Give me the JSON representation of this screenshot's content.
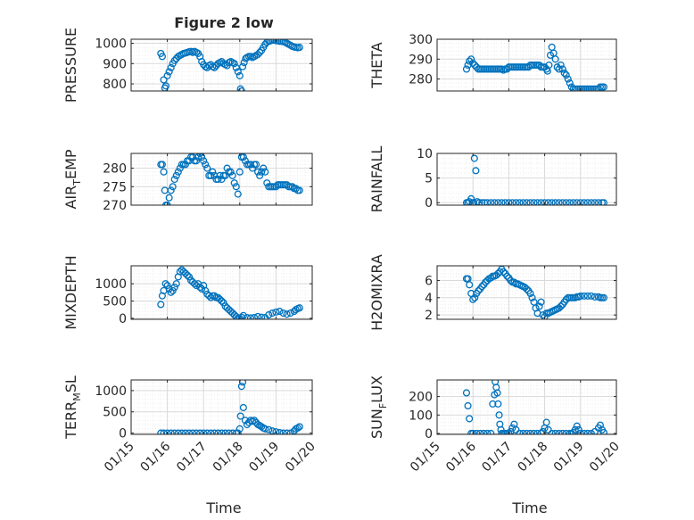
{
  "figure": {
    "title": "Figure 2 low",
    "xlabel": "Time",
    "xtick_labels": [
      "01/15",
      "01/16",
      "01/17",
      "01/18",
      "01/19",
      "01/20"
    ]
  },
  "colors": {
    "marker": "#0072BD",
    "axis": "#262626",
    "grid": "#d9d9d9",
    "minorgrid": "#ececec"
  },
  "chart_data": [
    {
      "type": "scatter",
      "ylabel": "PRESSURE",
      "xlim": [
        0,
        5
      ],
      "ylim": [
        765,
        1020
      ],
      "yticks": [
        800,
        900,
        1000
      ],
      "ytick_labels": [
        "800",
        "900",
        "1000"
      ],
      "x": [
        0.82,
        0.86,
        0.9,
        0.93,
        0.96,
        1.0,
        1.05,
        1.1,
        1.15,
        1.2,
        1.25,
        1.3,
        1.35,
        1.4,
        1.45,
        1.5,
        1.55,
        1.6,
        1.65,
        1.7,
        1.75,
        1.8,
        1.85,
        1.9,
        1.95,
        2.0,
        2.05,
        2.1,
        2.15,
        2.2,
        2.25,
        2.3,
        2.35,
        2.4,
        2.45,
        2.5,
        2.55,
        2.6,
        2.65,
        2.7,
        2.75,
        2.8,
        2.85,
        2.9,
        2.95,
        3.0,
        3.02,
        3.05,
        3.08,
        3.12,
        3.16,
        3.2,
        3.25,
        3.3,
        3.35,
        3.4,
        3.45,
        3.5,
        3.55,
        3.6,
        3.65,
        3.7,
        3.75,
        3.8,
        3.85,
        3.9,
        3.95,
        4.0,
        4.05,
        4.1,
        4.15,
        4.2,
        4.25,
        4.3,
        4.35,
        4.4,
        4.45,
        4.5,
        4.55,
        4.6,
        4.65
      ],
      "y": [
        950,
        935,
        820,
        780,
        790,
        840,
        860,
        880,
        900,
        915,
        925,
        935,
        940,
        945,
        950,
        952,
        955,
        958,
        960,
        955,
        960,
        955,
        950,
        935,
        910,
        895,
        885,
        880,
        890,
        895,
        885,
        880,
        890,
        900,
        905,
        910,
        900,
        895,
        890,
        905,
        910,
        905,
        900,
        880,
        860,
        840,
        775,
        765,
        885,
        905,
        925,
        930,
        935,
        935,
        930,
        935,
        940,
        945,
        955,
        965,
        980,
        995,
        1005,
        1010,
        1012,
        1015,
        1015,
        1013,
        1012,
        1010,
        1010,
        1008,
        1005,
        1000,
        995,
        990,
        985,
        982,
        980,
        978,
        980
      ]
    },
    {
      "type": "scatter",
      "ylabel": "THETA",
      "xlim": [
        0,
        5
      ],
      "ylim": [
        274,
        300
      ],
      "yticks": [
        280,
        290,
        300
      ],
      "ytick_labels": [
        "280",
        "290",
        "300"
      ],
      "x": [
        0.82,
        0.86,
        0.9,
        0.95,
        1.0,
        1.05,
        1.1,
        1.15,
        1.2,
        1.25,
        1.3,
        1.35,
        1.4,
        1.45,
        1.5,
        1.55,
        1.6,
        1.65,
        1.7,
        1.75,
        1.8,
        1.85,
        1.9,
        1.95,
        2.0,
        2.05,
        2.1,
        2.15,
        2.2,
        2.25,
        2.3,
        2.35,
        2.4,
        2.45,
        2.5,
        2.55,
        2.6,
        2.65,
        2.7,
        2.75,
        2.8,
        2.85,
        2.9,
        2.95,
        3.0,
        3.05,
        3.08,
        3.12,
        3.16,
        3.2,
        3.25,
        3.3,
        3.35,
        3.4,
        3.45,
        3.5,
        3.55,
        3.6,
        3.65,
        3.7,
        3.75,
        3.8,
        3.85,
        3.9,
        3.95,
        4.0,
        4.05,
        4.1,
        4.15,
        4.2,
        4.25,
        4.3,
        4.35,
        4.4,
        4.45,
        4.5,
        4.55,
        4.6,
        4.65
      ],
      "y": [
        285,
        287,
        289,
        290,
        288,
        287,
        286,
        285,
        285,
        285,
        285,
        285,
        285,
        285,
        285,
        285,
        285,
        285,
        285,
        285,
        285,
        284.5,
        285,
        285,
        286,
        286,
        286,
        286,
        286,
        286,
        286,
        286,
        286,
        286,
        286,
        286,
        287,
        287,
        287,
        287,
        287,
        287,
        286,
        286,
        286,
        285,
        284,
        287,
        292,
        296,
        293,
        290,
        286,
        285,
        287,
        285,
        283,
        282,
        280,
        278,
        276,
        275,
        275,
        275,
        275,
        275,
        275,
        275,
        275,
        275,
        275,
        275,
        275,
        275,
        275,
        275,
        276,
        276,
        276
      ]
    },
    {
      "type": "scatter",
      "ylabel": "AIR_TEMP",
      "xlim": [
        0,
        5
      ],
      "ylim": [
        270,
        284
      ],
      "yticks": [
        270,
        275,
        280
      ],
      "ytick_labels": [
        "270",
        "275",
        "280"
      ],
      "x": [
        0.82,
        0.86,
        0.9,
        0.93,
        0.96,
        1.0,
        1.05,
        1.1,
        1.15,
        1.2,
        1.25,
        1.3,
        1.35,
        1.4,
        1.45,
        1.5,
        1.55,
        1.6,
        1.65,
        1.7,
        1.75,
        1.8,
        1.85,
        1.9,
        1.95,
        2.0,
        2.05,
        2.1,
        2.15,
        2.2,
        2.25,
        2.3,
        2.35,
        2.4,
        2.45,
        2.5,
        2.55,
        2.6,
        2.65,
        2.7,
        2.75,
        2.8,
        2.85,
        2.9,
        2.95,
        3.0,
        3.05,
        3.1,
        3.15,
        3.2,
        3.25,
        3.3,
        3.35,
        3.4,
        3.45,
        3.5,
        3.55,
        3.6,
        3.65,
        3.7,
        3.75,
        3.8,
        3.85,
        3.9,
        3.95,
        4.0,
        4.05,
        4.1,
        4.15,
        4.2,
        4.25,
        4.3,
        4.35,
        4.4,
        4.45,
        4.5,
        4.55,
        4.6,
        4.65
      ],
      "y": [
        281,
        281,
        279,
        274,
        270,
        270,
        272,
        274,
        275,
        277,
        278,
        279,
        280,
        281,
        281,
        281,
        282,
        282,
        283,
        283,
        282,
        282,
        283,
        284,
        283,
        282,
        281,
        280,
        278,
        278,
        279,
        278,
        277,
        277,
        278,
        277,
        278,
        278,
        280,
        279,
        279,
        278,
        276,
        275,
        273,
        279,
        283,
        283,
        282,
        281,
        281,
        281,
        280,
        281,
        281,
        279,
        278,
        279,
        280,
        279,
        276,
        275,
        275,
        275,
        275,
        275,
        275.5,
        275.5,
        275.5,
        275.5,
        275.5,
        275.5,
        275,
        275,
        275,
        274.5,
        274.5,
        274,
        274
      ]
    },
    {
      "type": "scatter",
      "ylabel": "RAINFALL",
      "xlim": [
        0,
        5
      ],
      "ylim": [
        -0.5,
        10
      ],
      "yticks": [
        0,
        5,
        10
      ],
      "ytick_labels": [
        "0",
        "5",
        "10"
      ],
      "x": [
        0.82,
        0.86,
        0.9,
        0.95,
        1.0,
        1.02,
        1.04,
        1.08,
        1.12,
        1.18,
        1.25,
        1.32,
        1.4,
        1.5,
        1.6,
        1.7,
        1.8,
        1.9,
        2.0,
        2.1,
        2.2,
        2.3,
        2.4,
        2.5,
        2.6,
        2.7,
        2.8,
        2.9,
        3.0,
        3.1,
        3.2,
        3.3,
        3.4,
        3.5,
        3.6,
        3.7,
        3.8,
        3.9,
        4.0,
        4.1,
        4.2,
        4.3,
        4.4,
        4.5,
        4.6,
        4.65
      ],
      "y": [
        0,
        0,
        0.2,
        0.8,
        0,
        0,
        9,
        6.5,
        0.2,
        0,
        0,
        0,
        0,
        0,
        0,
        0,
        0,
        0,
        0,
        0,
        0,
        0,
        0,
        0,
        0,
        0,
        0,
        0,
        0,
        0,
        0,
        0,
        0,
        0,
        0,
        0,
        0,
        0,
        0,
        0,
        0,
        0,
        0,
        0,
        0,
        0
      ]
    },
    {
      "type": "scatter",
      "ylabel": "MIXDEPTH",
      "xlim": [
        0,
        5
      ],
      "ylim": [
        -30,
        1520
      ],
      "yticks": [
        0,
        500,
        1000
      ],
      "ytick_labels": [
        "0",
        "500",
        "1000"
      ],
      "x": [
        0.82,
        0.86,
        0.9,
        0.95,
        1.0,
        1.05,
        1.1,
        1.15,
        1.2,
        1.25,
        1.3,
        1.35,
        1.4,
        1.45,
        1.5,
        1.55,
        1.6,
        1.65,
        1.7,
        1.75,
        1.8,
        1.85,
        1.9,
        1.95,
        2.0,
        2.05,
        2.1,
        2.15,
        2.2,
        2.25,
        2.3,
        2.35,
        2.4,
        2.45,
        2.5,
        2.55,
        2.6,
        2.65,
        2.7,
        2.75,
        2.8,
        2.85,
        2.9,
        2.95,
        3.0,
        3.05,
        3.1,
        3.2,
        3.3,
        3.4,
        3.5,
        3.6,
        3.7,
        3.8,
        3.9,
        4.0,
        4.1,
        4.2,
        4.3,
        4.4,
        4.5,
        4.55,
        4.6,
        4.65
      ],
      "y": [
        400,
        650,
        800,
        1000,
        950,
        850,
        750,
        800,
        900,
        1000,
        1200,
        1350,
        1400,
        1350,
        1300,
        1250,
        1200,
        1100,
        1050,
        1000,
        950,
        1000,
        900,
        850,
        950,
        800,
        700,
        650,
        600,
        650,
        650,
        600,
        600,
        550,
        500,
        450,
        350,
        300,
        250,
        200,
        150,
        100,
        50,
        0,
        0,
        30,
        80,
        20,
        10,
        20,
        50,
        30,
        20,
        100,
        150,
        180,
        200,
        150,
        120,
        150,
        200,
        250,
        280,
        300
      ]
    },
    {
      "type": "scatter",
      "ylabel": "H2OMIXRA",
      "xlim": [
        0,
        5
      ],
      "ylim": [
        1.5,
        7.7
      ],
      "yticks": [
        2,
        4,
        6
      ],
      "ytick_labels": [
        "2",
        "4",
        "6"
      ],
      "x": [
        0.82,
        0.86,
        0.9,
        0.95,
        1.0,
        1.05,
        1.1,
        1.15,
        1.2,
        1.25,
        1.3,
        1.35,
        1.4,
        1.45,
        1.5,
        1.55,
        1.6,
        1.65,
        1.7,
        1.75,
        1.8,
        1.85,
        1.9,
        1.95,
        2.0,
        2.05,
        2.1,
        2.15,
        2.2,
        2.25,
        2.3,
        2.35,
        2.4,
        2.45,
        2.5,
        2.55,
        2.6,
        2.65,
        2.7,
        2.75,
        2.8,
        2.85,
        2.9,
        2.95,
        3.0,
        3.05,
        3.1,
        3.15,
        3.2,
        3.25,
        3.3,
        3.35,
        3.4,
        3.45,
        3.5,
        3.55,
        3.6,
        3.65,
        3.7,
        3.75,
        3.8,
        3.85,
        3.9,
        3.95,
        4.0,
        4.1,
        4.2,
        4.3,
        4.4,
        4.5,
        4.55,
        4.6,
        4.65
      ],
      "y": [
        6.2,
        6.2,
        5.5,
        4.5,
        3.8,
        4.0,
        4.5,
        4.8,
        5.0,
        5.3,
        5.5,
        5.8,
        6.0,
        6.2,
        6.3,
        6.5,
        6.5,
        6.6,
        6.8,
        7.0,
        7.3,
        7.0,
        6.8,
        6.5,
        6.3,
        6.0,
        5.8,
        5.8,
        5.6,
        5.6,
        5.5,
        5.4,
        5.3,
        5.2,
        5.0,
        4.8,
        4.5,
        4.0,
        3.5,
        2.8,
        2.2,
        3.0,
        3.5,
        2.0,
        1.8,
        2.2,
        2.2,
        2.3,
        2.4,
        2.5,
        2.6,
        2.7,
        2.8,
        3.0,
        3.2,
        3.5,
        3.8,
        4.0,
        4.0,
        4.0,
        4.0,
        4.0,
        4.1,
        4.1,
        4.2,
        4.2,
        4.2,
        4.2,
        4.1,
        4.1,
        4.0,
        4.0,
        4.0
      ]
    },
    {
      "type": "scatter",
      "ylabel": "TERR_MSL",
      "xlim": [
        0,
        5
      ],
      "ylim": [
        -30,
        1250
      ],
      "yticks": [
        0,
        500,
        1000
      ],
      "ytick_labels": [
        "0",
        "500",
        "1000"
      ],
      "x": [
        0.82,
        0.9,
        1.0,
        1.1,
        1.2,
        1.3,
        1.4,
        1.5,
        1.6,
        1.7,
        1.8,
        1.9,
        2.0,
        2.1,
        2.2,
        2.3,
        2.4,
        2.5,
        2.6,
        2.7,
        2.8,
        2.9,
        2.95,
        3.0,
        3.02,
        3.05,
        3.08,
        3.1,
        3.15,
        3.2,
        3.25,
        3.3,
        3.35,
        3.4,
        3.45,
        3.5,
        3.55,
        3.6,
        3.65,
        3.7,
        3.8,
        3.9,
        4.0,
        4.1,
        4.2,
        4.3,
        4.4,
        4.5,
        4.55,
        4.6,
        4.65
      ],
      "y": [
        0,
        0,
        0,
        0,
        0,
        0,
        0,
        0,
        0,
        0,
        0,
        0,
        0,
        0,
        0,
        0,
        0,
        0,
        0,
        0,
        0,
        0,
        0,
        100,
        400,
        1100,
        1200,
        600,
        300,
        200,
        250,
        300,
        280,
        300,
        250,
        200,
        180,
        150,
        120,
        100,
        80,
        50,
        30,
        10,
        0,
        0,
        0,
        50,
        100,
        120,
        150
      ]
    },
    {
      "type": "scatter",
      "ylabel": "SUN_FLUX",
      "xlim": [
        0,
        5
      ],
      "ylim": [
        -5,
        290
      ],
      "yticks": [
        0,
        100,
        200
      ],
      "ytick_labels": [
        "0",
        "100",
        "200"
      ],
      "x": [
        0.82,
        0.86,
        0.9,
        0.95,
        1.0,
        1.1,
        1.2,
        1.3,
        1.4,
        1.5,
        1.55,
        1.6,
        1.62,
        1.65,
        1.68,
        1.7,
        1.73,
        1.75,
        1.78,
        1.8,
        1.85,
        1.9,
        1.95,
        2.0,
        2.05,
        2.1,
        2.15,
        2.2,
        2.3,
        2.4,
        2.5,
        2.6,
        2.7,
        2.8,
        2.9,
        2.95,
        3.0,
        3.05,
        3.1,
        3.2,
        3.3,
        3.4,
        3.5,
        3.6,
        3.7,
        3.75,
        3.8,
        3.85,
        3.9,
        3.95,
        4.0,
        4.1,
        4.2,
        4.3,
        4.4,
        4.5,
        4.55,
        4.6,
        4.65
      ],
      "y": [
        220,
        150,
        80,
        0,
        0,
        0,
        0,
        0,
        0,
        0,
        160,
        210,
        280,
        250,
        220,
        160,
        100,
        50,
        20,
        0,
        0,
        0,
        0,
        0,
        10,
        30,
        50,
        20,
        0,
        0,
        0,
        0,
        0,
        0,
        0,
        10,
        30,
        60,
        20,
        0,
        0,
        0,
        0,
        0,
        0,
        0,
        5,
        20,
        40,
        20,
        0,
        0,
        0,
        0,
        10,
        30,
        45,
        20,
        5
      ]
    }
  ]
}
